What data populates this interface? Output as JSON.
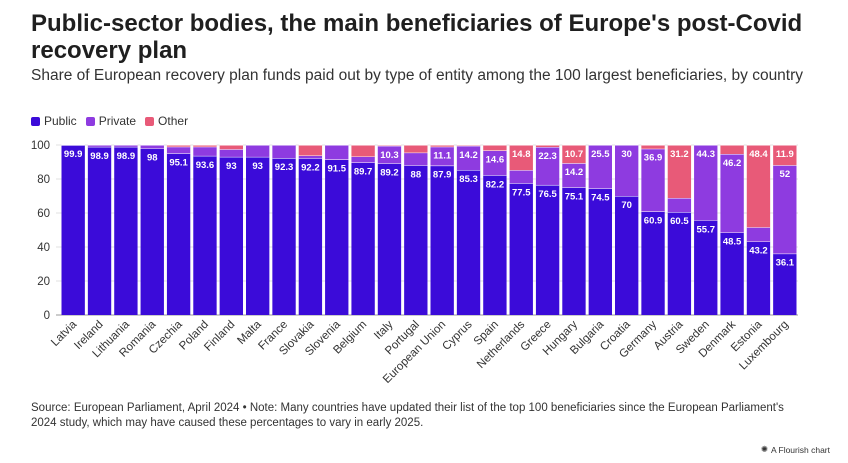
{
  "header": {
    "title": "Public-sector bodies, the main beneficiaries of Europe's post-Covid recovery plan",
    "subtitle": "Share of European recovery plan funds paid out by type of entity among the 100 largest beneficiaries, by country"
  },
  "legend": {
    "items": [
      {
        "label": "Public",
        "color": "#3b0bd9"
      },
      {
        "label": "Private",
        "color": "#8e3be0"
      },
      {
        "label": "Other",
        "color": "#e85a78"
      }
    ]
  },
  "chart_data": {
    "type": "bar",
    "stacked": true,
    "title": "Public-sector bodies, the main beneficiaries of Europe's post-Covid recovery plan",
    "xlabel": "",
    "ylabel": "",
    "ylim": [
      0,
      100
    ],
    "yticks": [
      0,
      20,
      40,
      60,
      80,
      100
    ],
    "grid": true,
    "legend_position": "top-left",
    "categories": [
      "Latvia",
      "Ireland",
      "Lithuania",
      "Romania",
      "Czechia",
      "Poland",
      "Finland",
      "Malta",
      "France",
      "Slovakia",
      "Slovenia",
      "Belgium",
      "Italy",
      "Portugal",
      "European Union",
      "Cyprus",
      "Spain",
      "Netherlands",
      "Greece",
      "Hungary",
      "Bulgaria",
      "Croatia",
      "Germany",
      "Austria",
      "Sweden",
      "Denmark",
      "Estonia",
      "Luxembourg"
    ],
    "series": [
      {
        "name": "Public",
        "color": "#3b0bd9",
        "values": [
          99.9,
          98.9,
          98.9,
          98,
          95.1,
          93.6,
          93,
          93,
          92.3,
          92.2,
          91.5,
          89.7,
          89.2,
          88,
          87.9,
          85.3,
          82.2,
          77.5,
          76.5,
          75.1,
          74.5,
          70,
          60.9,
          60.5,
          55.7,
          48.5,
          43.2,
          36.1
        ]
      },
      {
        "name": "Private",
        "color": "#8e3be0",
        "values": [
          0.1,
          1.1,
          1.1,
          2,
          3.9,
          5.4,
          4.5,
          7,
          7.7,
          1.6,
          8.5,
          3.5,
          10.3,
          7.5,
          11.1,
          14.2,
          14.6,
          7.7,
          22.3,
          14.2,
          25.5,
          30,
          36.9,
          8.3,
          44.3,
          46.2,
          8.4,
          52
        ]
      },
      {
        "name": "Other",
        "color": "#e85a78",
        "values": [
          0,
          0,
          0,
          0,
          1,
          1,
          2.5,
          0,
          0,
          6.2,
          0,
          6.8,
          0.5,
          4.5,
          1,
          0.5,
          3.2,
          14.8,
          1.2,
          10.7,
          0,
          0,
          2.2,
          31.2,
          0,
          5.3,
          48.4,
          11.9
        ]
      }
    ],
    "data_labels": {
      "Public": [
        "99.9",
        "98.9",
        "98.9",
        "98",
        "95.1",
        "93.6",
        "93",
        "93",
        "92.3",
        "92.2",
        "91.5",
        "89.7",
        "89.2",
        "88",
        "87.9",
        "85.3",
        "82.2",
        "77.5",
        "76.5",
        "75.1",
        "74.5",
        "70",
        "60.9",
        "60.5",
        "55.7",
        "48.5",
        "43.2",
        "36.1"
      ],
      "Private": [
        "",
        "",
        "",
        "",
        "",
        "",
        "",
        "",
        "",
        "",
        "",
        "",
        "10.3",
        "",
        "11.1",
        "14.2",
        "14.6",
        "",
        "22.3",
        "14.2",
        "25.5",
        "30",
        "36.9",
        "",
        "44.3",
        "46.2",
        "",
        "52"
      ],
      "Other": [
        "",
        "",
        "",
        "",
        "",
        "",
        "",
        "",
        "",
        "",
        "",
        "",
        "",
        "",
        "",
        "",
        "",
        "14.8",
        "",
        "10.7",
        "",
        "",
        "",
        "31.2",
        "",
        "",
        "48.4",
        "11.9"
      ]
    }
  },
  "footer": {
    "source": "Source: European Parliament, April 2024 • Note: Many countries have updated their list of the top 100 beneficiaries since the European Parliament's 2024 study, which may have caused these percentages to vary in early 2025.",
    "credit": "A Flourish chart"
  }
}
